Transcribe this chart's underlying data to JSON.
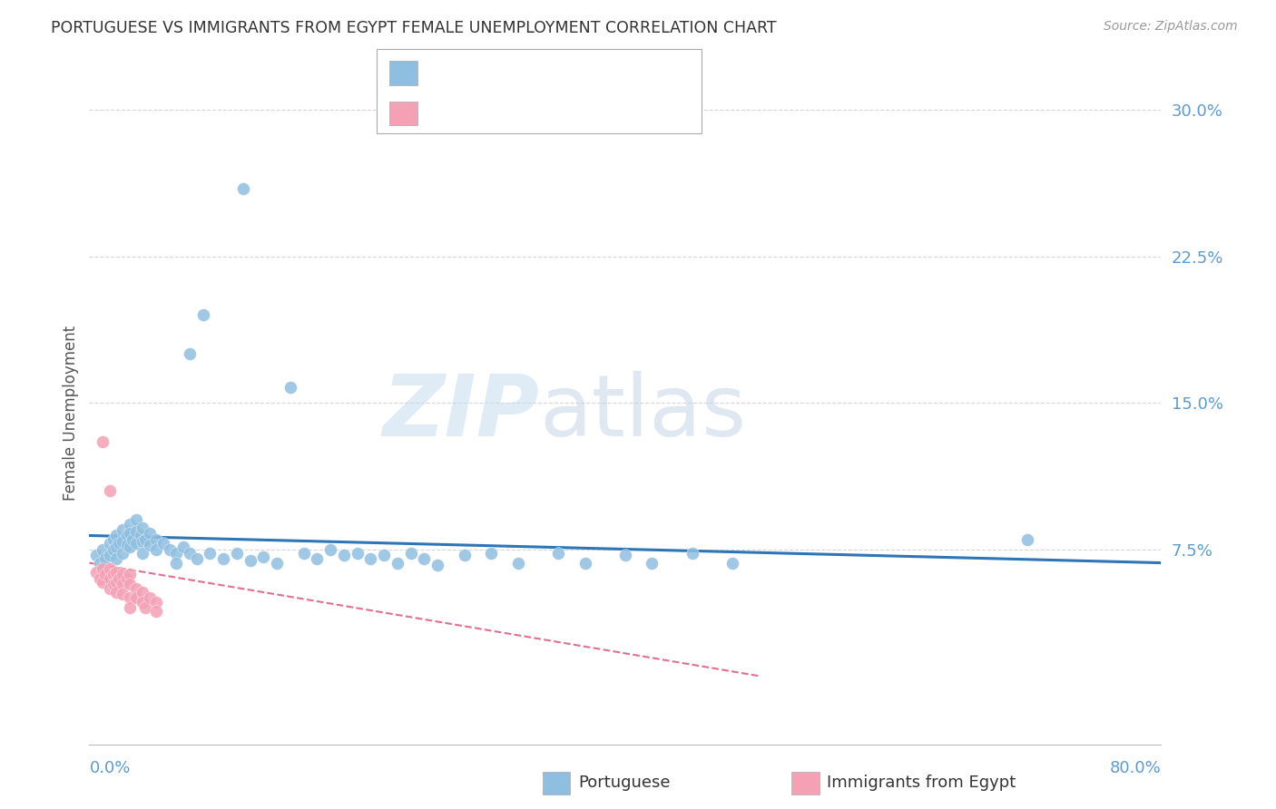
{
  "title": "PORTUGUESE VS IMMIGRANTS FROM EGYPT FEMALE UNEMPLOYMENT CORRELATION CHART",
  "source": "Source: ZipAtlas.com",
  "ylabel": "Female Unemployment",
  "yticks": [
    0.0,
    0.075,
    0.15,
    0.225,
    0.3
  ],
  "ytick_labels": [
    "",
    "7.5%",
    "15.0%",
    "22.5%",
    "30.0%"
  ],
  "xlim": [
    0.0,
    0.8
  ],
  "ylim": [
    -0.025,
    0.315
  ],
  "watermark_line1": "ZIP",
  "watermark_line2": "atlas",
  "portuguese_color": "#8fbfe0",
  "egypt_color": "#f4a0b5",
  "port_trend_color": "#2e75b6",
  "egypt_trend_color": "#e07090",
  "axis_color": "#5b9bd5",
  "grid_color": "#cccccc",
  "portuguese_scatter": [
    [
      0.005,
      0.072
    ],
    [
      0.008,
      0.068
    ],
    [
      0.01,
      0.075
    ],
    [
      0.012,
      0.07
    ],
    [
      0.015,
      0.078
    ],
    [
      0.015,
      0.072
    ],
    [
      0.018,
      0.08
    ],
    [
      0.018,
      0.075
    ],
    [
      0.02,
      0.082
    ],
    [
      0.02,
      0.076
    ],
    [
      0.02,
      0.07
    ],
    [
      0.022,
      0.078
    ],
    [
      0.025,
      0.085
    ],
    [
      0.025,
      0.079
    ],
    [
      0.025,
      0.073
    ],
    [
      0.028,
      0.082
    ],
    [
      0.028,
      0.077
    ],
    [
      0.03,
      0.088
    ],
    [
      0.03,
      0.083
    ],
    [
      0.03,
      0.076
    ],
    [
      0.032,
      0.08
    ],
    [
      0.035,
      0.09
    ],
    [
      0.035,
      0.084
    ],
    [
      0.035,
      0.078
    ],
    [
      0.038,
      0.082
    ],
    [
      0.04,
      0.086
    ],
    [
      0.04,
      0.079
    ],
    [
      0.04,
      0.073
    ],
    [
      0.042,
      0.08
    ],
    [
      0.045,
      0.083
    ],
    [
      0.045,
      0.077
    ],
    [
      0.05,
      0.08
    ],
    [
      0.05,
      0.075
    ],
    [
      0.055,
      0.078
    ],
    [
      0.06,
      0.075
    ],
    [
      0.065,
      0.073
    ],
    [
      0.065,
      0.068
    ],
    [
      0.07,
      0.076
    ],
    [
      0.075,
      0.073
    ],
    [
      0.08,
      0.07
    ],
    [
      0.09,
      0.073
    ],
    [
      0.1,
      0.07
    ],
    [
      0.11,
      0.073
    ],
    [
      0.12,
      0.069
    ],
    [
      0.13,
      0.071
    ],
    [
      0.14,
      0.068
    ],
    [
      0.15,
      0.158
    ],
    [
      0.16,
      0.073
    ],
    [
      0.17,
      0.07
    ],
    [
      0.18,
      0.075
    ],
    [
      0.19,
      0.072
    ],
    [
      0.2,
      0.073
    ],
    [
      0.21,
      0.07
    ],
    [
      0.22,
      0.072
    ],
    [
      0.23,
      0.068
    ],
    [
      0.24,
      0.073
    ],
    [
      0.25,
      0.07
    ],
    [
      0.26,
      0.067
    ],
    [
      0.28,
      0.072
    ],
    [
      0.3,
      0.073
    ],
    [
      0.32,
      0.068
    ],
    [
      0.35,
      0.073
    ],
    [
      0.37,
      0.068
    ],
    [
      0.4,
      0.072
    ],
    [
      0.42,
      0.068
    ],
    [
      0.45,
      0.073
    ],
    [
      0.48,
      0.068
    ],
    [
      0.7,
      0.08
    ],
    [
      0.085,
      0.195
    ],
    [
      0.075,
      0.175
    ],
    [
      0.115,
      0.26
    ]
  ],
  "egypt_scatter": [
    [
      0.005,
      0.063
    ],
    [
      0.008,
      0.06
    ],
    [
      0.01,
      0.065
    ],
    [
      0.01,
      0.058
    ],
    [
      0.012,
      0.062
    ],
    [
      0.015,
      0.065
    ],
    [
      0.015,
      0.06
    ],
    [
      0.015,
      0.055
    ],
    [
      0.018,
      0.062
    ],
    [
      0.018,
      0.057
    ],
    [
      0.02,
      0.063
    ],
    [
      0.02,
      0.058
    ],
    [
      0.02,
      0.053
    ],
    [
      0.022,
      0.06
    ],
    [
      0.025,
      0.062
    ],
    [
      0.025,
      0.057
    ],
    [
      0.025,
      0.052
    ],
    [
      0.028,
      0.06
    ],
    [
      0.03,
      0.062
    ],
    [
      0.03,
      0.057
    ],
    [
      0.03,
      0.05
    ],
    [
      0.03,
      0.045
    ],
    [
      0.035,
      0.055
    ],
    [
      0.035,
      0.05
    ],
    [
      0.04,
      0.053
    ],
    [
      0.04,
      0.048
    ],
    [
      0.042,
      0.045
    ],
    [
      0.045,
      0.05
    ],
    [
      0.05,
      0.048
    ],
    [
      0.05,
      0.043
    ],
    [
      0.01,
      0.13
    ],
    [
      0.015,
      0.105
    ]
  ],
  "port_trend": [
    0.0,
    0.082,
    0.8,
    0.068
  ],
  "egypt_trend": [
    0.0,
    0.068,
    0.5,
    0.01
  ]
}
